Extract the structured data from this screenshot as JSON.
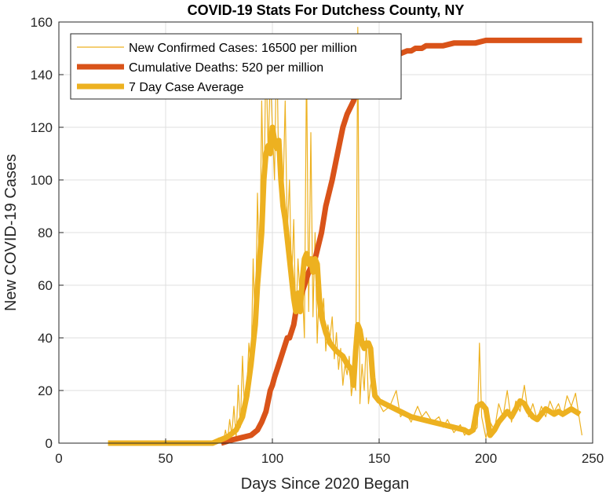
{
  "chart_data": {
    "type": "line",
    "title": "COVID-19 Stats For Dutchess County, NY",
    "xlabel": "Days Since 2020 Began",
    "ylabel": "New COVID-19 Cases",
    "xlim": [
      0,
      250
    ],
    "ylim": [
      0,
      160
    ],
    "xticks": [
      0,
      50,
      100,
      150,
      200,
      250
    ],
    "yticks": [
      0,
      20,
      40,
      60,
      80,
      100,
      120,
      140,
      160
    ],
    "grid": true,
    "legend_position": "top-left",
    "series": [
      {
        "name": "New Confirmed Cases: 16500 per million",
        "color": "#EDB120",
        "style": "thin",
        "x": [
          23,
          50,
          70,
          75,
          77,
          78,
          79,
          80,
          81,
          82,
          83,
          84,
          85,
          86,
          87,
          88,
          89,
          90,
          91,
          92,
          93,
          94,
          95,
          96,
          97,
          98,
          99,
          100,
          101,
          102,
          103,
          104,
          105,
          106,
          107,
          108,
          109,
          110,
          111,
          112,
          113,
          114,
          115,
          116,
          117,
          118,
          119,
          120,
          121,
          122,
          123,
          124,
          125,
          126,
          127,
          128,
          129,
          130,
          131,
          132,
          133,
          134,
          135,
          136,
          137,
          138,
          139,
          140,
          141,
          142,
          143,
          144,
          145,
          146,
          147,
          148,
          150,
          152,
          155,
          158,
          160,
          162,
          165,
          168,
          170,
          172,
          175,
          178,
          180,
          182,
          185,
          188,
          190,
          192,
          194,
          196,
          197,
          198,
          200,
          202,
          204,
          206,
          208,
          210,
          212,
          214,
          216,
          218,
          220,
          222,
          224,
          226,
          228,
          230,
          232,
          234,
          236,
          238,
          240,
          242,
          244,
          245
        ],
        "y": [
          0,
          0,
          0,
          2,
          0,
          5,
          1,
          9,
          3,
          14,
          2,
          22,
          6,
          33,
          12,
          20,
          38,
          28,
          70,
          42,
          95,
          60,
          130,
          88,
          150,
          110,
          140,
          120,
          100,
          155,
          100,
          113,
          95,
          130,
          80,
          100,
          60,
          85,
          45,
          70,
          55,
          60,
          40,
          145,
          50,
          118,
          48,
          80,
          38,
          60,
          45,
          55,
          35,
          45,
          40,
          48,
          32,
          42,
          28,
          36,
          22,
          30,
          26,
          33,
          18,
          25,
          20,
          158,
          15,
          30,
          20,
          40,
          15,
          22,
          25,
          18,
          15,
          12,
          14,
          20,
          10,
          12,
          8,
          14,
          10,
          12,
          8,
          10,
          6,
          9,
          4,
          7,
          3,
          5,
          4,
          6,
          38,
          10,
          2,
          8,
          5,
          15,
          10,
          20,
          8,
          16,
          12,
          22,
          10,
          15,
          9,
          14,
          10,
          16,
          12,
          15,
          10,
          18,
          14,
          19,
          8,
          3
        ]
      },
      {
        "name": "Cumulative Deaths: 520 per million",
        "color": "#D95319",
        "style": "thick",
        "x": [
          76,
          80,
          85,
          90,
          93,
          95,
          97,
          98,
          99,
          100,
          101,
          103,
          105,
          107,
          108,
          110,
          111,
          113,
          115,
          117,
          120,
          123,
          125,
          128,
          130,
          133,
          135,
          138,
          140,
          142,
          145,
          148,
          150,
          152,
          155,
          158,
          160,
          163,
          165,
          167,
          170,
          172,
          175,
          180,
          185,
          190,
          195,
          200,
          210,
          220,
          230,
          240,
          245
        ],
        "y": [
          0,
          1,
          2,
          3,
          5,
          8,
          12,
          16,
          20,
          22,
          25,
          30,
          35,
          40,
          40,
          45,
          50,
          55,
          60,
          65,
          70,
          80,
          90,
          100,
          108,
          120,
          125,
          130,
          135,
          138,
          142,
          145,
          146,
          147,
          147,
          148,
          148,
          149,
          149,
          150,
          150,
          151,
          151,
          151,
          152,
          152,
          152,
          153,
          153,
          153,
          153,
          153,
          153
        ]
      },
      {
        "name": "7 Day Case Average",
        "color": "#EDB120",
        "style": "thick",
        "x": [
          23,
          40,
          60,
          72,
          75,
          78,
          80,
          83,
          86,
          88,
          90,
          92,
          93,
          95,
          96,
          97,
          98,
          99,
          100,
          101,
          102,
          103,
          104,
          105,
          106,
          108,
          110,
          111,
          112,
          113,
          114,
          115,
          116,
          117,
          118,
          119,
          120,
          121,
          122,
          123,
          124,
          125,
          127,
          130,
          133,
          135,
          137,
          138,
          139,
          140,
          141,
          142,
          143,
          144,
          145,
          146,
          147,
          148,
          150,
          155,
          160,
          165,
          170,
          175,
          180,
          185,
          190,
          192,
          194,
          196,
          198,
          200,
          202,
          204,
          206,
          208,
          210,
          212,
          214,
          216,
          218,
          220,
          222,
          224,
          226,
          228,
          230,
          232,
          234,
          236,
          238,
          240,
          242,
          244
        ],
        "y": [
          0,
          0,
          0,
          0,
          1,
          2,
          3,
          5,
          10,
          18,
          30,
          45,
          60,
          80,
          100,
          110,
          113,
          110,
          120,
          115,
          112,
          115,
          100,
          90,
          85,
          70,
          55,
          50,
          57,
          50,
          62,
          70,
          72,
          68,
          70,
          65,
          70,
          68,
          55,
          48,
          45,
          42,
          38,
          35,
          33,
          30,
          28,
          22,
          35,
          45,
          43,
          38,
          36,
          38,
          38,
          36,
          25,
          18,
          16,
          14,
          12,
          10,
          9,
          8,
          7,
          6,
          5,
          4,
          5,
          14,
          15,
          13,
          3,
          5,
          8,
          10,
          12,
          10,
          13,
          16,
          15,
          12,
          10,
          9,
          11,
          13,
          12,
          11,
          12,
          11,
          12,
          13,
          12,
          11
        ]
      }
    ]
  }
}
